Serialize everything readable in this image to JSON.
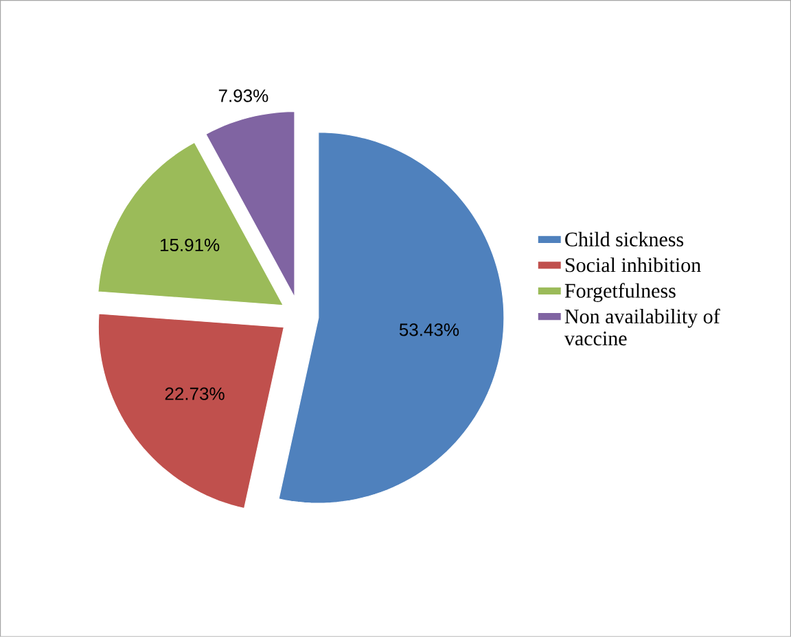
{
  "chart_data": {
    "type": "pie",
    "categories": [
      "Child sickness",
      "Social inhibition",
      "Forgetfulness",
      "Non availability of vaccine"
    ],
    "values": [
      53.43,
      22.73,
      15.91,
      7.93
    ],
    "colors": [
      "#4f81bd",
      "#c0504d",
      "#9bbb59",
      "#8064a2"
    ],
    "value_labels": [
      "53.43%",
      "22.73%",
      "15.91%",
      "7.93%"
    ],
    "legend": "right"
  }
}
